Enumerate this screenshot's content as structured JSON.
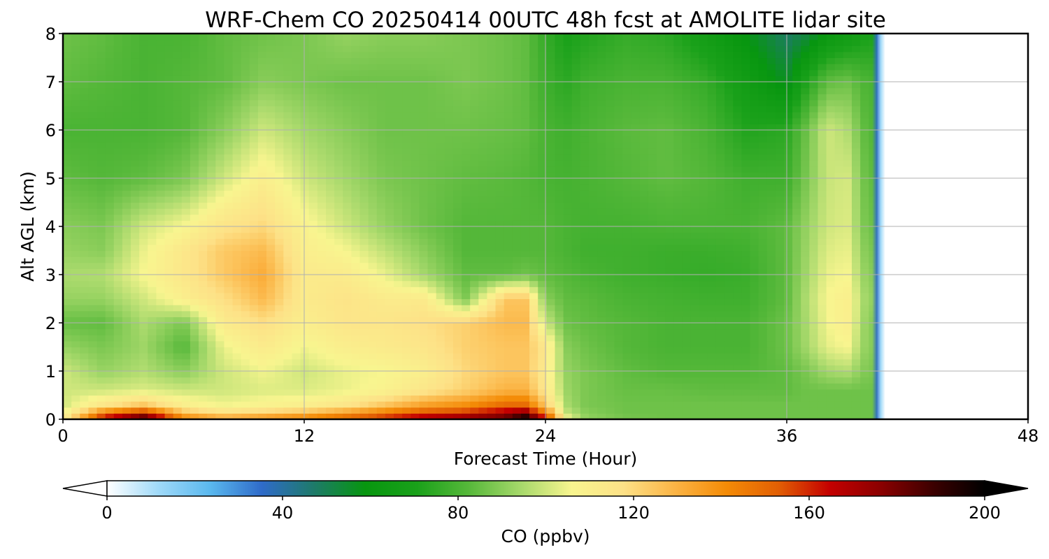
{
  "chart_data": {
    "type": "heatmap",
    "title": "WRF-Chem CO  20250414 00UTC 48h fcst at AMOLITE lidar site",
    "xlabel": "Forecast Time (Hour)",
    "ylabel": "Alt AGL (km)",
    "xlim": [
      0,
      48
    ],
    "ylim": [
      0,
      8
    ],
    "x_ticks": [
      "0",
      "12",
      "24",
      "36",
      "48"
    ],
    "y_ticks": [
      "0",
      "1",
      "2",
      "3",
      "4",
      "5",
      "6",
      "7",
      "8"
    ],
    "grid": true,
    "data_end_hour": 40.5,
    "z_x": [
      0,
      2,
      4,
      6,
      8,
      10,
      12,
      14,
      16,
      18,
      20,
      22,
      23,
      24,
      25,
      26,
      28,
      30,
      32,
      34,
      36,
      37,
      38,
      39,
      40
    ],
    "z_y": [
      0,
      0.1,
      0.3,
      0.6,
      1,
      1.5,
      2,
      2.5,
      3,
      3.5,
      4,
      5,
      6,
      7,
      8
    ],
    "z_values": [
      [
        110,
        170,
        195,
        150,
        140,
        145,
        150,
        155,
        165,
        175,
        180,
        185,
        200,
        170,
        110,
        92,
        88,
        86,
        86,
        86,
        86,
        86,
        86,
        86,
        86
      ],
      [
        105,
        150,
        170,
        130,
        120,
        125,
        130,
        140,
        150,
        160,
        165,
        175,
        185,
        150,
        100,
        90,
        86,
        86,
        86,
        86,
        86,
        86,
        86,
        86,
        86
      ],
      [
        100,
        115,
        125,
        110,
        105,
        108,
        110,
        115,
        125,
        135,
        140,
        150,
        150,
        125,
        95,
        88,
        86,
        86,
        86,
        86,
        86,
        86,
        86,
        86,
        86
      ],
      [
        100,
        100,
        102,
        100,
        100,
        102,
        102,
        104,
        108,
        115,
        122,
        130,
        130,
        115,
        93,
        88,
        85,
        85,
        84,
        84,
        84,
        86,
        86,
        86,
        86
      ],
      [
        100,
        92,
        96,
        90,
        100,
        105,
        100,
        104,
        106,
        110,
        120,
        125,
        125,
        112,
        92,
        88,
        84,
        82,
        82,
        82,
        84,
        88,
        94,
        96,
        88
      ],
      [
        92,
        88,
        93,
        82,
        104,
        112,
        105,
        110,
        112,
        115,
        122,
        125,
        125,
        115,
        90,
        86,
        82,
        80,
        80,
        80,
        86,
        94,
        103,
        106,
        90
      ],
      [
        85,
        84,
        95,
        88,
        112,
        118,
        110,
        115,
        115,
        118,
        122,
        128,
        128,
        100,
        86,
        84,
        82,
        80,
        80,
        80,
        86,
        95,
        105,
        110,
        90
      ],
      [
        92,
        92,
        100,
        110,
        118,
        128,
        112,
        116,
        112,
        112,
        88,
        125,
        125,
        90,
        84,
        83,
        80,
        79,
        78,
        78,
        84,
        96,
        106,
        110,
        92
      ],
      [
        95,
        96,
        106,
        114,
        124,
        132,
        112,
        112,
        104,
        94,
        84,
        84,
        86,
        84,
        82,
        80,
        78,
        77,
        76,
        77,
        84,
        94,
        104,
        106,
        90
      ],
      [
        92,
        90,
        104,
        114,
        124,
        128,
        110,
        106,
        98,
        90,
        82,
        82,
        82,
        82,
        80,
        78,
        78,
        77,
        77,
        78,
        84,
        93,
        102,
        104,
        88
      ],
      [
        90,
        88,
        100,
        106,
        116,
        120,
        108,
        100,
        92,
        86,
        82,
        82,
        82,
        82,
        80,
        79,
        79,
        80,
        80,
        80,
        84,
        92,
        100,
        102,
        86
      ],
      [
        84,
        82,
        84,
        88,
        100,
        110,
        100,
        94,
        88,
        86,
        84,
        83,
        82,
        80,
        79,
        80,
        82,
        84,
        82,
        78,
        78,
        88,
        99,
        101,
        84
      ],
      [
        80,
        80,
        80,
        82,
        90,
        100,
        94,
        90,
        86,
        86,
        86,
        85,
        84,
        80,
        78,
        80,
        83,
        84,
        80,
        72,
        74,
        86,
        100,
        96,
        82
      ],
      [
        84,
        82,
        80,
        82,
        84,
        90,
        88,
        86,
        86,
        86,
        88,
        86,
        84,
        78,
        74,
        78,
        80,
        80,
        76,
        66,
        56,
        72,
        84,
        86,
        80
      ],
      [
        86,
        84,
        80,
        80,
        84,
        86,
        88,
        92,
        90,
        90,
        88,
        86,
        84,
        76,
        70,
        72,
        76,
        74,
        66,
        58,
        48,
        52,
        60,
        64,
        70
      ]
    ],
    "colorbar": {
      "label": "CO  (ppbv)",
      "min": 0,
      "max": 200,
      "ticks": [
        "0",
        "40",
        "80",
        "120",
        "160",
        "200"
      ],
      "extend": "both",
      "colors": [
        "#ffffff",
        "#9fd9f8",
        "#5ab8ee",
        "#2f6bc9",
        "#1e7a6a",
        "#07960f",
        "#1aa11a",
        "#56b83a",
        "#a5d86a",
        "#f8f58f",
        "#fde187",
        "#fbb445",
        "#f48b06",
        "#e25f04",
        "#c40000",
        "#8a0000",
        "#3c0000",
        "#000000"
      ]
    }
  }
}
